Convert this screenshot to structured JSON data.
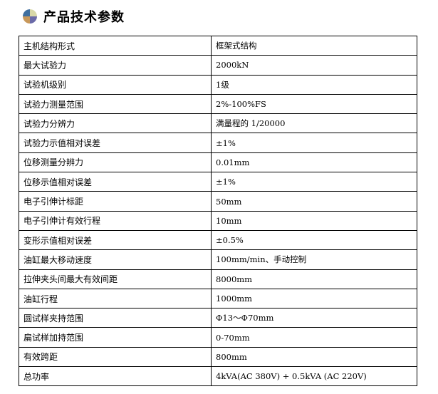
{
  "title": "产品技术参数",
  "icon": "quadrant-ball-icon",
  "colors": {
    "q1": "#3f6f9f",
    "q2": "#d8d8a8",
    "q3": "#c8985a",
    "q4": "#6a6aa8"
  },
  "rows": [
    {
      "label": "主机结构形式",
      "value": "框架式结构"
    },
    {
      "label": "最大试验力",
      "value": "2000kN"
    },
    {
      "label": "试验机级别",
      "value": "1级"
    },
    {
      "label": "试验力测量范围",
      "value": "2%-100%FS"
    },
    {
      "label": "试验力分辨力",
      "value": "满量程的 1/20000"
    },
    {
      "label": "试验力示值相对误差",
      "value": "±1%"
    },
    {
      "label": "位移测量分辨力",
      "value": "0.01mm"
    },
    {
      "label": "位移示值相对误差",
      "value": "±1%"
    },
    {
      "label": "电子引伸计标距",
      "value": "50mm"
    },
    {
      "label": "电子引伸计有效行程",
      "value": "10mm"
    },
    {
      "label": "变形示值相对误差",
      "value": "±0.5%"
    },
    {
      "label": "油缸最大移动速度",
      "value": "100mm/min、手动控制"
    },
    {
      "label": "拉伸夹头间最大有效间距",
      "value": "8000mm"
    },
    {
      "label": "油缸行程",
      "value": "1000mm"
    },
    {
      "label": "圆试样夹持范围",
      "value": "Φ13～Φ70mm"
    },
    {
      "label": "扁试样加持范围",
      "value": "0-70mm"
    },
    {
      "label": "有效跨距",
      "value": "800mm"
    },
    {
      "label": "总功率",
      "value": "4kVA(AC 380V) + 0.5kVA (AC 220V)"
    }
  ]
}
